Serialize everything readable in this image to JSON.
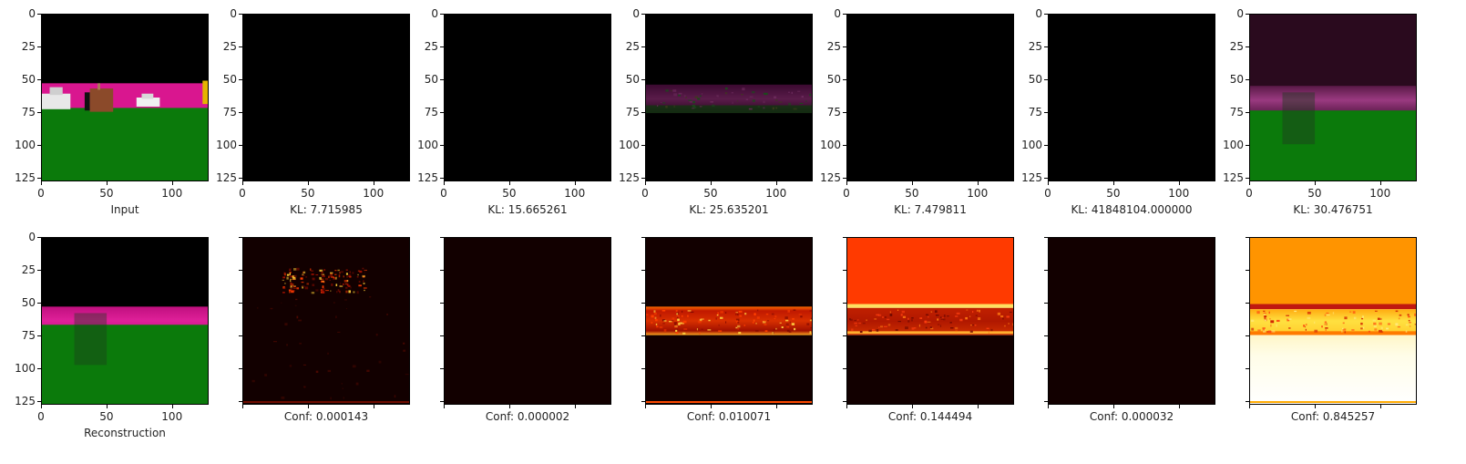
{
  "chart_data": {
    "type": "heatmap",
    "axis": {
      "xlim": [
        0,
        128
      ],
      "ylim": [
        128,
        0
      ],
      "xticks": [
        0,
        50,
        100
      ],
      "yticks": [
        0,
        25,
        50,
        75,
        100,
        125
      ]
    },
    "top_row": [
      {
        "id": "input",
        "caption": "Input",
        "kind": "scene"
      },
      {
        "id": "layer1",
        "caption": "KL: 7.715985",
        "kind": "black"
      },
      {
        "id": "layer2",
        "caption": "KL: 15.665261",
        "kind": "black"
      },
      {
        "id": "layer3",
        "caption": "KL: 25.635201",
        "kind": "dim-band"
      },
      {
        "id": "layer4",
        "caption": "KL: 7.479811",
        "kind": "black"
      },
      {
        "id": "layer5",
        "caption": "KL: 41848104.000000",
        "kind": "black"
      },
      {
        "id": "layer6",
        "caption": "KL: 30.476751",
        "kind": "recon-dark"
      }
    ],
    "bottom_row": [
      {
        "id": "reconstruction",
        "caption": "Reconstruction",
        "kind": "recon",
        "has_tick_labels": true
      },
      {
        "id": "conf1",
        "caption": "Conf: 0.000143",
        "value": 0.000143,
        "kind": "heat-sparse"
      },
      {
        "id": "conf2",
        "caption": "Conf: 0.000002",
        "value": 2e-06,
        "kind": "heat-empty"
      },
      {
        "id": "conf3",
        "caption": "Conf: 0.010071",
        "value": 0.010071,
        "kind": "heat-band"
      },
      {
        "id": "conf4",
        "caption": "Conf: 0.144494",
        "value": 0.144494,
        "kind": "heat-orange"
      },
      {
        "id": "conf5",
        "caption": "Conf: 0.000032",
        "value": 3.2e-05,
        "kind": "heat-empty"
      },
      {
        "id": "conf6",
        "caption": "Conf: 0.845257",
        "value": 0.845257,
        "kind": "heat-bright"
      }
    ],
    "colors": {
      "sky": "#000000",
      "road": "#d9168f",
      "grass": "#0b7a0b",
      "heat_low": "#120000",
      "heat_mid": "#d01c00",
      "heat_high": "#ffe24a",
      "heat_max": "#fffde8"
    }
  }
}
